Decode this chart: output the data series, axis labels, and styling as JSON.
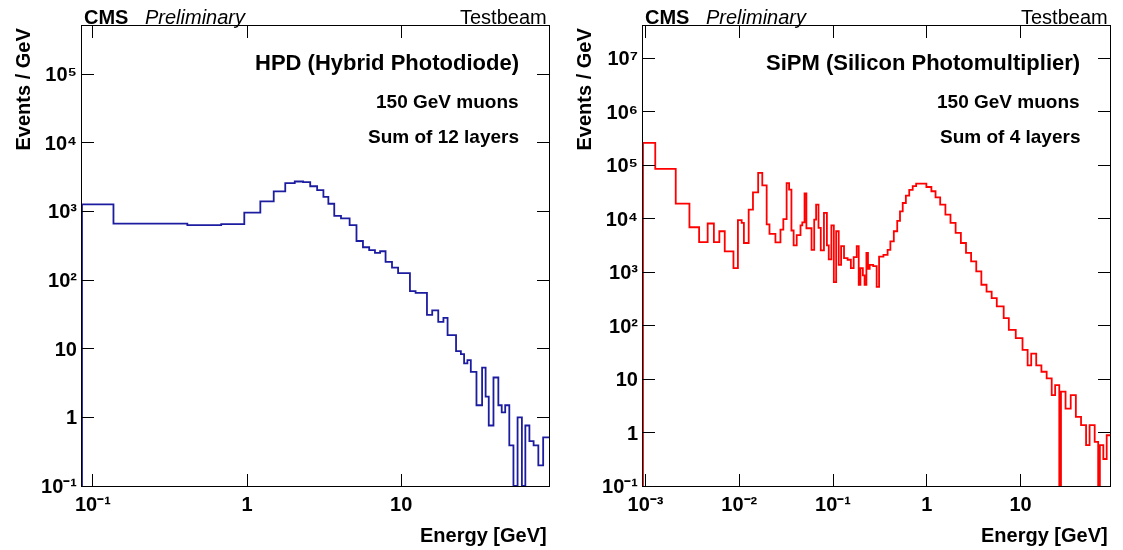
{
  "chart_data": [
    {
      "type": "histogram",
      "xlabel": "Energy [GeV]",
      "ylabel": "Events / GeV",
      "log": "xy",
      "grid": false,
      "color": "#1c1ca0",
      "annotations": [
        "CMS",
        "Preliminary",
        "Testbeam",
        "HPD (Hybrid Photodiode)",
        "150 GeV muons",
        "Sum of 12 layers"
      ],
      "xlim": [
        0.085,
        91
      ],
      "ylim": [
        0.1,
        500000
      ],
      "xticks": [
        {
          "value": 0.1,
          "label": "10⁻¹"
        },
        {
          "value": 1,
          "label": "1"
        },
        {
          "value": 10,
          "label": "10"
        }
      ],
      "yticks": [
        {
          "value": 0.1,
          "label": "10⁻¹"
        },
        {
          "value": 1,
          "label": "1"
        },
        {
          "value": 10,
          "label": "10"
        },
        {
          "value": 100,
          "label": "10²"
        },
        {
          "value": 1000,
          "label": "10³"
        },
        {
          "value": 10000,
          "label": "10⁴"
        },
        {
          "value": 100000,
          "label": "10⁵"
        }
      ],
      "bins": [
        0.085,
        0.136,
        0.41,
        0.68,
        0.96,
        1.22,
        1.49,
        1.77,
        2.04,
        2.31,
        2.57,
        2.85,
        3.13,
        3.37,
        3.68,
        4.07,
        4.63,
        5.13,
        5.65,
        6.2,
        6.76,
        7.3,
        7.92,
        8.72,
        9.55,
        11.4,
        12.4,
        14.7,
        15.9,
        17.4,
        18.8,
        20,
        22.7,
        24.4,
        25.6,
        26.9,
        28.3,
        30.8,
        33.5,
        35.3,
        37,
        39.7,
        42.7,
        44.9,
        47.3,
        50.3,
        53.5,
        56.9,
        60.7,
        63.9,
        67.9,
        72.3,
        77.6,
        83.4,
        91
      ],
      "values": [
        1260,
        660,
        630,
        650,
        960,
        1400,
        1950,
        2570,
        2720,
        2660,
        2320,
        2040,
        1620,
        1290,
        860,
        790,
        630,
        370,
        300,
        272,
        248,
        262,
        184,
        151,
        126,
        69,
        65,
        31,
        36,
        24.5,
        28,
        15.7,
        9.2,
        8.3,
        6.1,
        6.8,
        4.6,
        1.5,
        5.3,
        2,
        0.76,
        3.8,
        1.5,
        1.18,
        1.5,
        0.39,
        null,
        1,
        null,
        0.76,
        0.45,
        0.39,
        0.2,
        0.51
      ]
    },
    {
      "type": "histogram",
      "xlabel": "Energy [GeV]",
      "ylabel": "Events / GeV",
      "log": "xy",
      "grid": false,
      "color": "#ff0000",
      "annotations": [
        "CMS",
        "Preliminary",
        "Testbeam",
        "SiPM (Silicon Photomultiplier)",
        "150 GeV muons",
        "Sum of 4 layers"
      ],
      "xlim": [
        0.00094,
        90
      ],
      "ylim": [
        0.1,
        40000000
      ],
      "xticks": [
        {
          "value": 0.001,
          "label": "10⁻³"
        },
        {
          "value": 0.01,
          "label": "10⁻²"
        },
        {
          "value": 0.1,
          "label": "10⁻¹"
        },
        {
          "value": 1,
          "label": "1"
        },
        {
          "value": 10,
          "label": "10"
        }
      ],
      "yticks": [
        {
          "value": 0.1,
          "label": "10⁻¹"
        },
        {
          "value": 1,
          "label": "1"
        },
        {
          "value": 10,
          "label": "10"
        },
        {
          "value": 100,
          "label": "10²"
        },
        {
          "value": 1000,
          "label": "10³"
        },
        {
          "value": 10000,
          "label": "10⁴"
        },
        {
          "value": 100000,
          "label": "10⁵"
        },
        {
          "value": 1000000,
          "label": "10⁶"
        },
        {
          "value": 10000000,
          "label": "10⁷"
        }
      ],
      "bins": [
        0.00094,
        0.00127,
        0.0021,
        0.00294,
        0.00373,
        0.0046,
        0.00536,
        0.00613,
        0.007,
        0.00867,
        0.00967,
        0.0106,
        0.0112,
        0.0126,
        0.014,
        0.0159,
        0.0176,
        0.0196,
        0.021,
        0.0243,
        0.0275,
        0.0295,
        0.032,
        0.034,
        0.036,
        0.038,
        0.041,
        0.045,
        0.047,
        0.0497,
        0.052,
        0.059,
        0.063,
        0.066,
        0.07,
        0.074,
        0.08,
        0.086,
        0.09,
        0.096,
        0.102,
        0.108,
        0.115,
        0.122,
        0.131,
        0.143,
        0.155,
        0.166,
        0.179,
        0.188,
        0.196,
        0.208,
        0.217,
        0.227,
        0.236,
        0.246,
        0.268,
        0.292,
        0.31,
        0.345,
        0.382,
        0.409,
        0.445,
        0.484,
        0.518,
        0.554,
        0.598,
        0.65,
        0.708,
        0.77,
        0.873,
        0.99,
        1.12,
        1.24,
        1.39,
        1.58,
        1.79,
        2.03,
        2.31,
        2.62,
        2.97,
        3.37,
        3.82,
        4.34,
        4.92,
        5.58,
        6.61,
        7.5,
        8.89,
        10.5,
        11.9,
        13,
        14.7,
        16.7,
        19,
        21.5,
        23.4,
        25.9,
        27,
        30.2,
        34.3,
        38.9,
        44.2,
        50,
        54.5,
        61.8,
        67.3,
        70.2,
        76.4,
        83,
        90
      ],
      "values": [
        260000,
        85000,
        19000,
        6900,
        3650,
        8100,
        3650,
        5800,
        2440,
        1190,
        9400,
        8300,
        3500,
        14700,
        31000,
        72000,
        42000,
        7800,
        5200,
        3600,
        6200,
        9800,
        46000,
        35000,
        6000,
        3160,
        4900,
        7500,
        8500,
        29500,
        6600,
        2600,
        9600,
        18300,
        6700,
        2550,
        12800,
        3160,
        1730,
        7500,
        650,
        5800,
        1370,
        3050,
        1830,
        1700,
        1190,
        1900,
        3050,
        580,
        1190,
        870,
        580,
        2280,
        1150,
        1370,
        1290,
        530,
        1950,
        2100,
        2600,
        3760,
        5800,
        9100,
        13700,
        19600,
        27000,
        34500,
        40500,
        45000,
        45000,
        39000,
        32500,
        25000,
        18300,
        11900,
        8300,
        5400,
        3500,
        2280,
        1590,
        1030,
        580,
        430,
        325,
        228,
        138,
        83,
        58,
        35,
        18,
        30,
        18,
        13.7,
        10.3,
        5,
        7.7,
        null,
        5.8,
        2.8,
        5,
        1.96,
        1.37,
        0.58,
        1.37,
        0.67,
        null,
        0.58,
        0.32,
        0.89
      ]
    }
  ]
}
